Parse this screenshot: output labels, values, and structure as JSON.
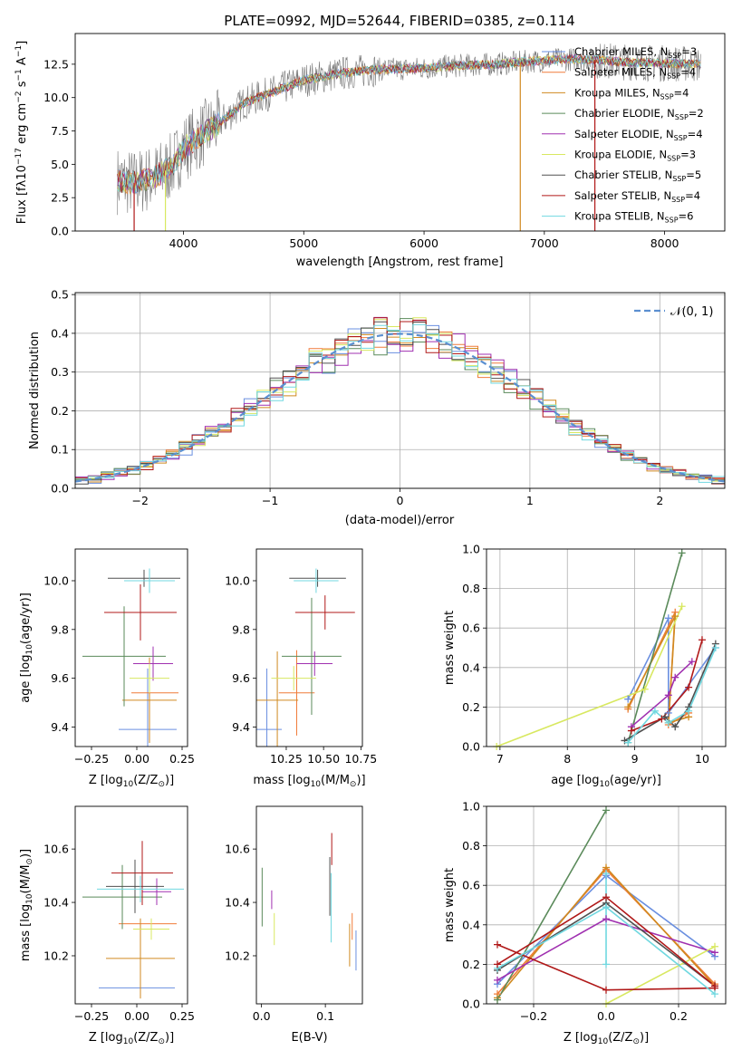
{
  "figure": {
    "title": "PLATE=0992, MJD=52644, FIBERID=0385, z=0.114"
  },
  "colors": {
    "axis": "#000000",
    "grid": "#b0b0b0",
    "gaussian": "#5b8fd0"
  },
  "series_styles": [
    {
      "name": "Chabrier MILES",
      "color": "#6a8fe0"
    },
    {
      "name": "Salpeter MILES",
      "color": "#f07c3a"
    },
    {
      "name": "Kroupa MILES",
      "color": "#d08a20"
    },
    {
      "name": "Chabrier ELODIE",
      "color": "#5a8a5a"
    },
    {
      "name": "Salpeter ELODIE",
      "color": "#a030b0"
    },
    {
      "name": "Kroupa ELODIE",
      "color": "#d8e860"
    },
    {
      "name": "Chabrier STELIB",
      "color": "#505050"
    },
    {
      "name": "Salpeter STELIB",
      "color": "#b01818"
    },
    {
      "name": "Kroupa STELIB",
      "color": "#70d8e0"
    }
  ],
  "chart_data": [
    {
      "id": "spectrum",
      "type": "line",
      "title": "PLATE=0992, MJD=52644, FIBERID=0385, z=0.114",
      "xlabel": "wavelength [Angstrom, rest frame]",
      "ylabel": "Flux [f",
      "ylabel_parts": [
        "Flux [f",
        "λ",
        "10",
        "−17",
        " erg cm",
        "−2",
        " s",
        "−1",
        " A",
        "−1",
        "]"
      ],
      "xlim": [
        3100,
        8500
      ],
      "ylim": [
        0,
        14.8
      ],
      "xticks": [
        4000,
        5000,
        6000,
        7000,
        8000
      ],
      "yticks": [
        0.0,
        2.5,
        5.0,
        7.5,
        10.0,
        12.5
      ],
      "ytick_labels": [
        "0.0",
        "2.5",
        "5.0",
        "7.5",
        "10.0",
        "12.5"
      ],
      "grid": false,
      "legend_position": "right",
      "legend": [
        {
          "label": "Chabrier MILES, N",
          "sub": "SSP",
          "rest": "=3"
        },
        {
          "label": "Salpeter MILES, N",
          "sub": "SSP",
          "rest": "=4"
        },
        {
          "label": "Kroupa MILES, N",
          "sub": "SSP",
          "rest": "=4"
        },
        {
          "label": "Chabrier ELODIE, N",
          "sub": "SSP",
          "rest": "=2"
        },
        {
          "label": "Salpeter ELODIE, N",
          "sub": "SSP",
          "rest": "=4"
        },
        {
          "label": "Kroupa ELODIE, N",
          "sub": "SSP",
          "rest": "=3"
        },
        {
          "label": "Chabrier STELIB, N",
          "sub": "SSP",
          "rest": "=5"
        },
        {
          "label": "Salpeter STELIB, N",
          "sub": "SSP",
          "rest": "=4"
        },
        {
          "label": "Kroupa STELIB, N",
          "sub": "SSP",
          "rest": "=6"
        }
      ],
      "continuum": {
        "x": [
          3450,
          3600,
          3750,
          3900,
          4000,
          4100,
          4300,
          4500,
          4800,
          5000,
          5300,
          5600,
          6000,
          6300,
          6600,
          7000,
          7300,
          7600,
          7900,
          8300
        ],
        "y": [
          3.8,
          3.6,
          4.0,
          4.8,
          6.2,
          6.9,
          8.1,
          9.6,
          10.6,
          11.3,
          11.8,
          12.1,
          12.2,
          12.4,
          12.5,
          12.8,
          12.9,
          12.7,
          12.6,
          12.5
        ]
      },
      "spikes": [
        {
          "x": 3590,
          "y": 0
        },
        {
          "x": 3850,
          "y": 0
        },
        {
          "x": 6800,
          "y": 0
        },
        {
          "x": 7420,
          "y": 0
        }
      ]
    },
    {
      "id": "residuals",
      "type": "line",
      "xlabel": "(data-model)/error",
      "ylabel": "Normed distribution",
      "xlim": [
        -2.5,
        2.5
      ],
      "ylim": [
        0,
        0.505
      ],
      "xticks": [
        -2,
        -1,
        0,
        1,
        2
      ],
      "xtick_labels": [
        "−2",
        "−1",
        "0",
        "1",
        "2"
      ],
      "yticks": [
        0.0,
        0.1,
        0.2,
        0.3,
        0.4,
        0.5
      ],
      "ytick_labels": [
        "0.0",
        "0.1",
        "0.2",
        "0.3",
        "0.4",
        "0.5"
      ],
      "grid": true,
      "legend_position": "top-right",
      "gaussian_label": "𝒩(0, 1)",
      "bins": {
        "start": -2.5,
        "width": 0.1,
        "count": 50
      }
    },
    {
      "id": "age-vs-Z",
      "type": "scatter",
      "xlabel": "Z [log",
      "xlabel_parts": [
        "Z [log",
        "10",
        "(Z/Z",
        "⊙",
        ")]"
      ],
      "ylabel_parts": [
        "age  [log",
        "10",
        "(age/yr)]"
      ],
      "xlim": [
        -0.34,
        0.28
      ],
      "ylim": [
        9.32,
        10.13
      ],
      "xticks": [
        -0.25,
        0.0,
        0.25
      ],
      "xtick_labels": [
        "−0.25",
        "0.00",
        "0.25"
      ],
      "yticks": [
        9.4,
        9.6,
        9.8,
        10.0
      ],
      "ytick_labels": [
        "9.4",
        "9.6",
        "9.8",
        "10.0"
      ],
      "errorbars": [
        {
          "series": 0,
          "x": 0.06,
          "xerr": 0.16,
          "y": 9.39,
          "yerr": 0.5
        },
        {
          "series": 1,
          "x": 0.1,
          "xerr": 0.13,
          "y": 9.54,
          "yerr": 0.0
        },
        {
          "series": 2,
          "x": 0.07,
          "xerr": 0.15,
          "y": 9.51,
          "yerr": 0.35
        },
        {
          "series": 3,
          "x": -0.07,
          "xerr": 0.23,
          "y": 9.69,
          "yerr": 0.41
        },
        {
          "series": 4,
          "x": 0.09,
          "xerr": 0.11,
          "y": 9.66,
          "yerr": 0.14
        },
        {
          "series": 5,
          "x": 0.07,
          "xerr": 0.11,
          "y": 9.6,
          "yerr": 0.12
        },
        {
          "series": 6,
          "x": 0.04,
          "xerr": 0.2,
          "y": 10.01,
          "yerr": 0.07
        },
        {
          "series": 7,
          "x": 0.02,
          "xerr": 0.2,
          "y": 9.87,
          "yerr": 0.23
        },
        {
          "series": 8,
          "x": 0.07,
          "xerr": 0.14,
          "y": 10.0,
          "yerr": 0.1
        }
      ]
    },
    {
      "id": "age-vs-mass",
      "type": "scatter",
      "xlabel_parts": [
        "mass [log",
        "10",
        "(M/M",
        "⊙",
        ")]"
      ],
      "xlim": [
        10.05,
        10.76
      ],
      "ylim": [
        9.32,
        10.13
      ],
      "xticks": [
        10.25,
        10.5,
        10.75
      ],
      "xtick_labels": [
        "10.25",
        "10.50",
        "10.75"
      ],
      "yticks": [
        9.4,
        9.6,
        9.8,
        10.0
      ],
      "ytick_labels": [
        "9.4",
        "9.6",
        "9.8",
        "10.0"
      ],
      "errorbars": [
        {
          "series": 0,
          "x": 10.12,
          "xerr": 0.1,
          "y": 9.39,
          "yerr": 0.5
        },
        {
          "series": 1,
          "x": 10.32,
          "xerr": 0.12,
          "y": 9.54,
          "yerr": 0.35
        },
        {
          "series": 2,
          "x": 10.19,
          "xerr": 0.14,
          "y": 9.51,
          "yerr": 0.4
        },
        {
          "series": 3,
          "x": 10.42,
          "xerr": 0.2,
          "y": 9.69,
          "yerr": 0.48
        },
        {
          "series": 4,
          "x": 10.44,
          "xerr": 0.12,
          "y": 9.66,
          "yerr": 0.1
        },
        {
          "series": 5,
          "x": 10.3,
          "xerr": 0.15,
          "y": 9.6,
          "yerr": 0.1
        },
        {
          "series": 6,
          "x": 10.46,
          "xerr": 0.19,
          "y": 10.01,
          "yerr": 0.07
        },
        {
          "series": 7,
          "x": 10.51,
          "xerr": 0.2,
          "y": 9.87,
          "yerr": 0.14
        },
        {
          "series": 8,
          "x": 10.45,
          "xerr": 0.15,
          "y": 10.0,
          "yerr": 0.1
        }
      ]
    },
    {
      "id": "mass-vs-Z",
      "type": "scatter",
      "xlabel_parts": [
        "Z [log",
        "10",
        "(Z/Z",
        "⊙",
        ")]"
      ],
      "ylabel_parts": [
        "mass [log",
        "10",
        "(M/M",
        "⊙",
        ")]"
      ],
      "xlim": [
        -0.34,
        0.28
      ],
      "ylim": [
        10.02,
        10.76
      ],
      "xticks": [
        -0.25,
        0.0,
        0.25
      ],
      "xtick_labels": [
        "−0.25",
        "0.00",
        "0.25"
      ],
      "yticks": [
        10.2,
        10.4,
        10.6
      ],
      "ytick_labels": [
        "10.2",
        "10.4",
        "10.6"
      ],
      "errorbars": [
        {
          "series": 0,
          "x": 0.0,
          "xerr": 0.21,
          "y": 10.08,
          "yerr": 0.0
        },
        {
          "series": 1,
          "x": 0.06,
          "xerr": 0.16,
          "y": 10.32,
          "yerr": 0.0
        },
        {
          "series": 2,
          "x": 0.02,
          "xerr": 0.19,
          "y": 10.19,
          "yerr": 0.3
        },
        {
          "series": 3,
          "x": -0.08,
          "xerr": 0.22,
          "y": 10.42,
          "yerr": 0.24
        },
        {
          "series": 4,
          "x": 0.11,
          "xerr": 0.08,
          "y": 10.44,
          "yerr": 0.1
        },
        {
          "series": 5,
          "x": 0.08,
          "xerr": 0.1,
          "y": 10.3,
          "yerr": 0.08
        },
        {
          "series": 6,
          "x": -0.01,
          "xerr": 0.16,
          "y": 10.46,
          "yerr": 0.2
        },
        {
          "series": 7,
          "x": 0.03,
          "xerr": 0.17,
          "y": 10.51,
          "yerr": 0.24
        },
        {
          "series": 8,
          "x": 0.02,
          "xerr": 0.24,
          "y": 10.45,
          "yerr": 0.1
        }
      ]
    },
    {
      "id": "mass-vs-ebv",
      "type": "scatter",
      "xlabel": "E(B-V)",
      "xlim": [
        -0.008,
        0.158
      ],
      "ylim": [
        10.02,
        10.76
      ],
      "xticks": [
        0.0,
        0.1
      ],
      "xtick_labels": [
        "0.0",
        "0.1"
      ],
      "yticks": [
        10.2,
        10.4,
        10.6
      ],
      "ytick_labels": [
        "10.2",
        "10.4",
        "10.6"
      ],
      "errorbars": [
        {
          "series": 0,
          "x": 0.148,
          "xerr": 0,
          "y": 10.22,
          "yerr": 0.15
        },
        {
          "series": 1,
          "x": 0.142,
          "xerr": 0,
          "y": 10.31,
          "yerr": 0.1
        },
        {
          "series": 2,
          "x": 0.138,
          "xerr": 0,
          "y": 10.24,
          "yerr": 0.16
        },
        {
          "series": 3,
          "x": 0.001,
          "xerr": 0,
          "y": 10.42,
          "yerr": 0.22
        },
        {
          "series": 4,
          "x": 0.016,
          "xerr": 0,
          "y": 10.41,
          "yerr": 0.07
        },
        {
          "series": 5,
          "x": 0.02,
          "xerr": 0,
          "y": 10.3,
          "yerr": 0.12
        },
        {
          "series": 6,
          "x": 0.107,
          "xerr": 0,
          "y": 10.46,
          "yerr": 0.22
        },
        {
          "series": 7,
          "x": 0.11,
          "xerr": 0,
          "y": 10.6,
          "yerr": 0.12
        },
        {
          "series": 8,
          "x": 0.109,
          "xerr": 0,
          "y": 10.38,
          "yerr": 0.26
        }
      ]
    },
    {
      "id": "weight-vs-age",
      "type": "line",
      "xlabel_parts": [
        "age  [log",
        "10",
        "(age/yr)]"
      ],
      "ylabel": "mass weight",
      "xlim": [
        6.8,
        10.35
      ],
      "ylim": [
        0,
        1.0
      ],
      "xticks": [
        7,
        8,
        9,
        10
      ],
      "xtick_labels": [
        "7",
        "8",
        "9",
        "10"
      ],
      "yticks": [
        0.0,
        0.2,
        0.4,
        0.6,
        0.8,
        1.0
      ],
      "ytick_labels": [
        "0.0",
        "0.2",
        "0.4",
        "0.6",
        "0.8",
        "1.0"
      ],
      "grid": true,
      "series": [
        {
          "series": 0,
          "x": [
            8.9,
            9.5,
            9.5,
            10.2
          ],
          "y": [
            0.24,
            0.65,
            0.17,
            0.5
          ]
        },
        {
          "series": 1,
          "x": [
            8.9,
            9.6,
            9.5,
            9.8
          ],
          "y": [
            0.19,
            0.68,
            0.11,
            0.17
          ]
        },
        {
          "series": 2,
          "x": [
            8.9,
            9.6,
            9.5,
            9.8
          ],
          "y": [
            0.2,
            0.66,
            0.12,
            0.15
          ]
        },
        {
          "series": 3,
          "x": [
            8.9,
            9.7
          ],
          "y": [
            0.02,
            0.98
          ]
        },
        {
          "series": 4,
          "x": [
            8.95,
            9.5,
            9.6,
            9.85
          ],
          "y": [
            0.1,
            0.26,
            0.35,
            0.43
          ]
        },
        {
          "series": 5,
          "x": [
            6.95,
            9.15,
            9.7
          ],
          "y": [
            0.0,
            0.29,
            0.71
          ]
        },
        {
          "series": 6,
          "x": [
            8.85,
            9.45,
            9.6,
            9.8,
            10.2
          ],
          "y": [
            0.03,
            0.15,
            0.1,
            0.2,
            0.52
          ]
        },
        {
          "series": 7,
          "x": [
            8.95,
            9.4,
            9.8,
            10.0
          ],
          "y": [
            0.08,
            0.14,
            0.3,
            0.54
          ]
        },
        {
          "series": 8,
          "x": [
            8.9,
            9.3,
            9.5,
            9.8,
            10.2
          ],
          "y": [
            0.02,
            0.18,
            0.12,
            0.18,
            0.5
          ]
        }
      ]
    },
    {
      "id": "weight-vs-Z",
      "type": "line",
      "xlabel_parts": [
        "Z [log",
        "10",
        "(Z/Z",
        "⊙",
        ")]"
      ],
      "ylabel": "mass weight",
      "xlim": [
        -0.33,
        0.33
      ],
      "ylim": [
        0,
        1.0
      ],
      "xticks": [
        -0.2,
        0.0,
        0.2
      ],
      "xtick_labels": [
        "−0.2",
        "0.0",
        "0.2"
      ],
      "yticks": [
        0.0,
        0.2,
        0.4,
        0.6,
        0.8,
        1.0
      ],
      "ytick_labels": [
        "0.0",
        "0.2",
        "0.4",
        "0.6",
        "0.8",
        "1.0"
      ],
      "grid": true,
      "series": [
        {
          "series": 0,
          "x": [
            -0.3,
            0.0,
            0.3
          ],
          "y": [
            0.1,
            0.65,
            0.24
          ]
        },
        {
          "series": 1,
          "x": [
            -0.3,
            0.0,
            0.3
          ],
          "y": [
            0.05,
            0.68,
            0.1
          ]
        },
        {
          "series": 2,
          "x": [
            -0.3,
            0.0,
            0.3
          ],
          "y": [
            0.03,
            0.69,
            0.09
          ]
        },
        {
          "series": 3,
          "x": [
            -0.3,
            0.0
          ],
          "y": [
            0.02,
            0.98
          ]
        },
        {
          "series": 4,
          "x": [
            -0.3,
            0.0,
            0.3
          ],
          "y": [
            0.12,
            0.43,
            0.26
          ]
        },
        {
          "series": 5,
          "x": [
            0.0,
            0.3
          ],
          "y": [
            0.0,
            0.29
          ]
        },
        {
          "series": 6,
          "x": [
            -0.3,
            0.0,
            0.3
          ],
          "y": [
            0.17,
            0.51,
            0.09
          ]
        },
        {
          "series": 7,
          "x": [
            -0.3,
            0.0,
            0.3
          ],
          "y": [
            0.3,
            0.07,
            0.08
          ]
        },
        {
          "series": 8,
          "x": [
            -0.3,
            0.0,
            0.3
          ],
          "y": [
            0.18,
            0.49,
            0.05
          ]
        }
      ],
      "extra_lines": [
        {
          "series": 7,
          "x": [
            -0.3,
            0.0,
            0.3
          ],
          "y": [
            0.2,
            0.54,
            0.09
          ]
        },
        {
          "series": 8,
          "x": [
            0.0,
            0.0
          ],
          "y": [
            0.2,
            0.66
          ]
        }
      ]
    }
  ]
}
